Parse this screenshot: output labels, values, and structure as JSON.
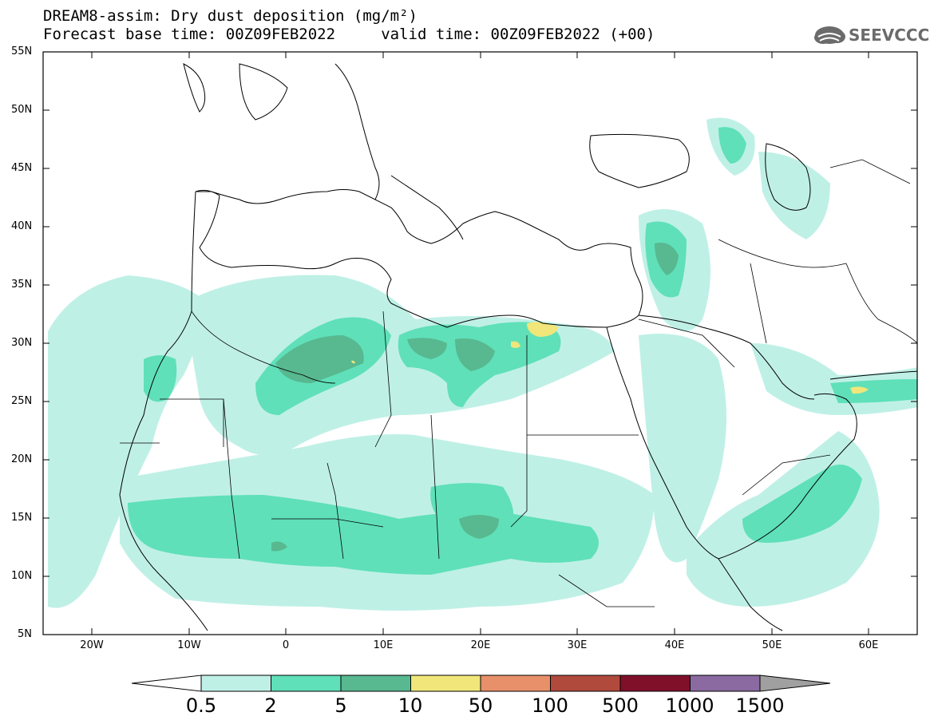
{
  "header": {
    "title_line1": "DREAM8-assim: Dry dust deposition (mg/m²)",
    "title_line2": "Forecast base time: 00Z09FEB2022     valid time: 00Z09FEB2022 (+00)",
    "logo_text": "SEEVCCC"
  },
  "map": {
    "lon_range": [
      -25,
      65
    ],
    "lat_range": [
      5,
      55
    ],
    "lat_labels": [
      "55N",
      "50N",
      "45N",
      "40N",
      "35N",
      "30N",
      "25N",
      "20N",
      "15N",
      "10N",
      "5N"
    ],
    "lon_labels": [
      "20W",
      "10W",
      "0",
      "10E",
      "20E",
      "30E",
      "40E",
      "50E",
      "60E"
    ]
  },
  "colorbar": {
    "labels": [
      "0.5",
      "2",
      "5",
      "10",
      "50",
      "100",
      "500",
      "1000",
      "1500"
    ],
    "colors": [
      "#bff0e6",
      "#5fe0b8",
      "#58b890",
      "#f0e67a",
      "#e8906a",
      "#b04a3c",
      "#80102a",
      "#8a6aa0",
      "#a0a0a0"
    ],
    "under_color": "#ffffff",
    "over_color": "#a0a0a0"
  }
}
